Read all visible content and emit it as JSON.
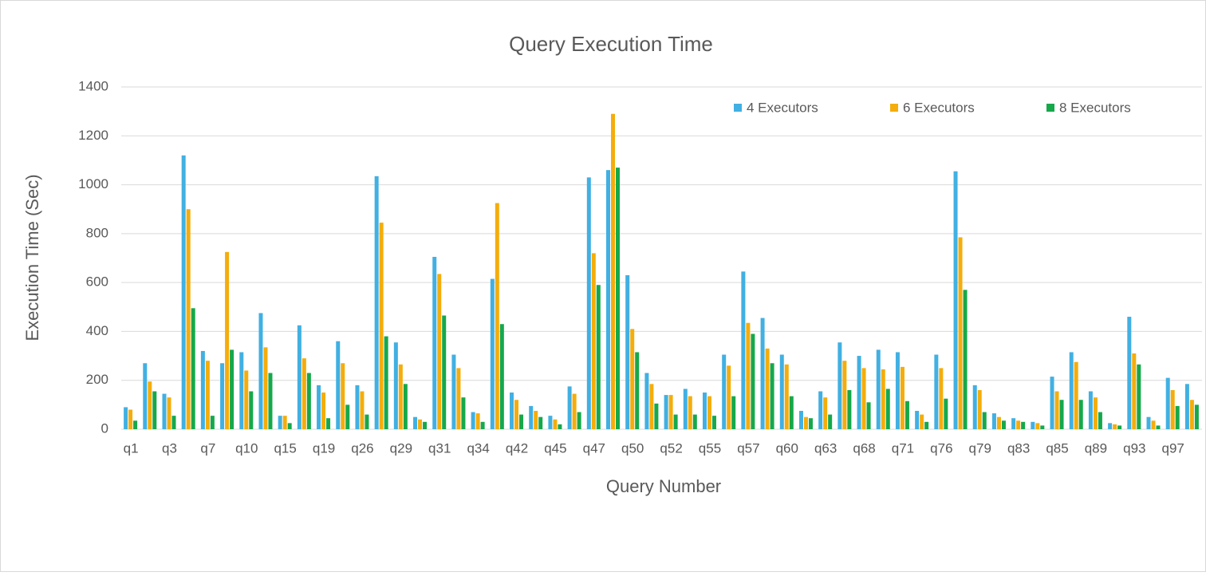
{
  "chart_data": {
    "type": "bar",
    "title": "Query Execution Time",
    "x_label": "Query Number",
    "y_label": "Execution Time (Sec)",
    "categories": [
      "q1",
      null,
      "q3",
      null,
      "q7",
      null,
      "q10",
      null,
      "q15",
      null,
      "q19",
      null,
      "q26",
      null,
      "q29",
      null,
      "q31",
      null,
      "q34",
      null,
      "q42",
      null,
      "q45",
      null,
      "q47",
      null,
      "q50",
      null,
      "q52",
      null,
      "q55",
      null,
      "q57",
      null,
      "q60",
      null,
      "q63",
      null,
      "q68",
      null,
      "q71",
      null,
      "q76",
      null,
      "q79",
      null,
      "q83",
      null,
      "q85",
      null,
      "q89",
      null,
      "q93",
      null,
      "q97",
      null
    ],
    "series": [
      {
        "name": "4 Executors",
        "color": "#41b0e2",
        "values": [
          90,
          270,
          145,
          1120,
          320,
          270,
          315,
          475,
          55,
          425,
          180,
          360,
          180,
          1035,
          355,
          50,
          705,
          305,
          70,
          615,
          150,
          95,
          55,
          175,
          1030,
          1060,
          630,
          230,
          140,
          165,
          150,
          305,
          645,
          455,
          305,
          75,
          155,
          355,
          300,
          325,
          315,
          75,
          305,
          1055,
          180,
          65,
          45,
          30,
          215,
          315,
          155,
          25,
          460,
          50,
          210,
          185
        ]
      },
      {
        "name": "6 Executors",
        "color": "#f4ad0c",
        "values": [
          80,
          195,
          130,
          900,
          280,
          725,
          240,
          335,
          55,
          290,
          150,
          270,
          155,
          845,
          265,
          40,
          635,
          250,
          65,
          925,
          120,
          75,
          40,
          145,
          720,
          1290,
          410,
          185,
          140,
          135,
          135,
          260,
          435,
          330,
          265,
          50,
          130,
          280,
          250,
          245,
          255,
          60,
          250,
          785,
          160,
          50,
          35,
          25,
          155,
          275,
          130,
          20,
          310,
          35,
          160,
          120
        ]
      },
      {
        "name": "8 Executors",
        "color": "#16a84b",
        "values": [
          35,
          155,
          55,
          495,
          55,
          325,
          155,
          230,
          25,
          230,
          45,
          100,
          60,
          380,
          185,
          30,
          465,
          130,
          30,
          430,
          60,
          50,
          20,
          70,
          590,
          1070,
          315,
          105,
          60,
          60,
          55,
          135,
          390,
          270,
          135,
          45,
          60,
          160,
          110,
          165,
          115,
          30,
          125,
          570,
          70,
          35,
          30,
          15,
          120,
          120,
          70,
          15,
          265,
          15,
          95,
          100
        ]
      }
    ],
    "ylim": [
      0,
      1400
    ],
    "yticks": [
      0,
      200,
      400,
      600,
      800,
      1000,
      1200,
      1400
    ],
    "grid": true,
    "legend": "top-right"
  }
}
